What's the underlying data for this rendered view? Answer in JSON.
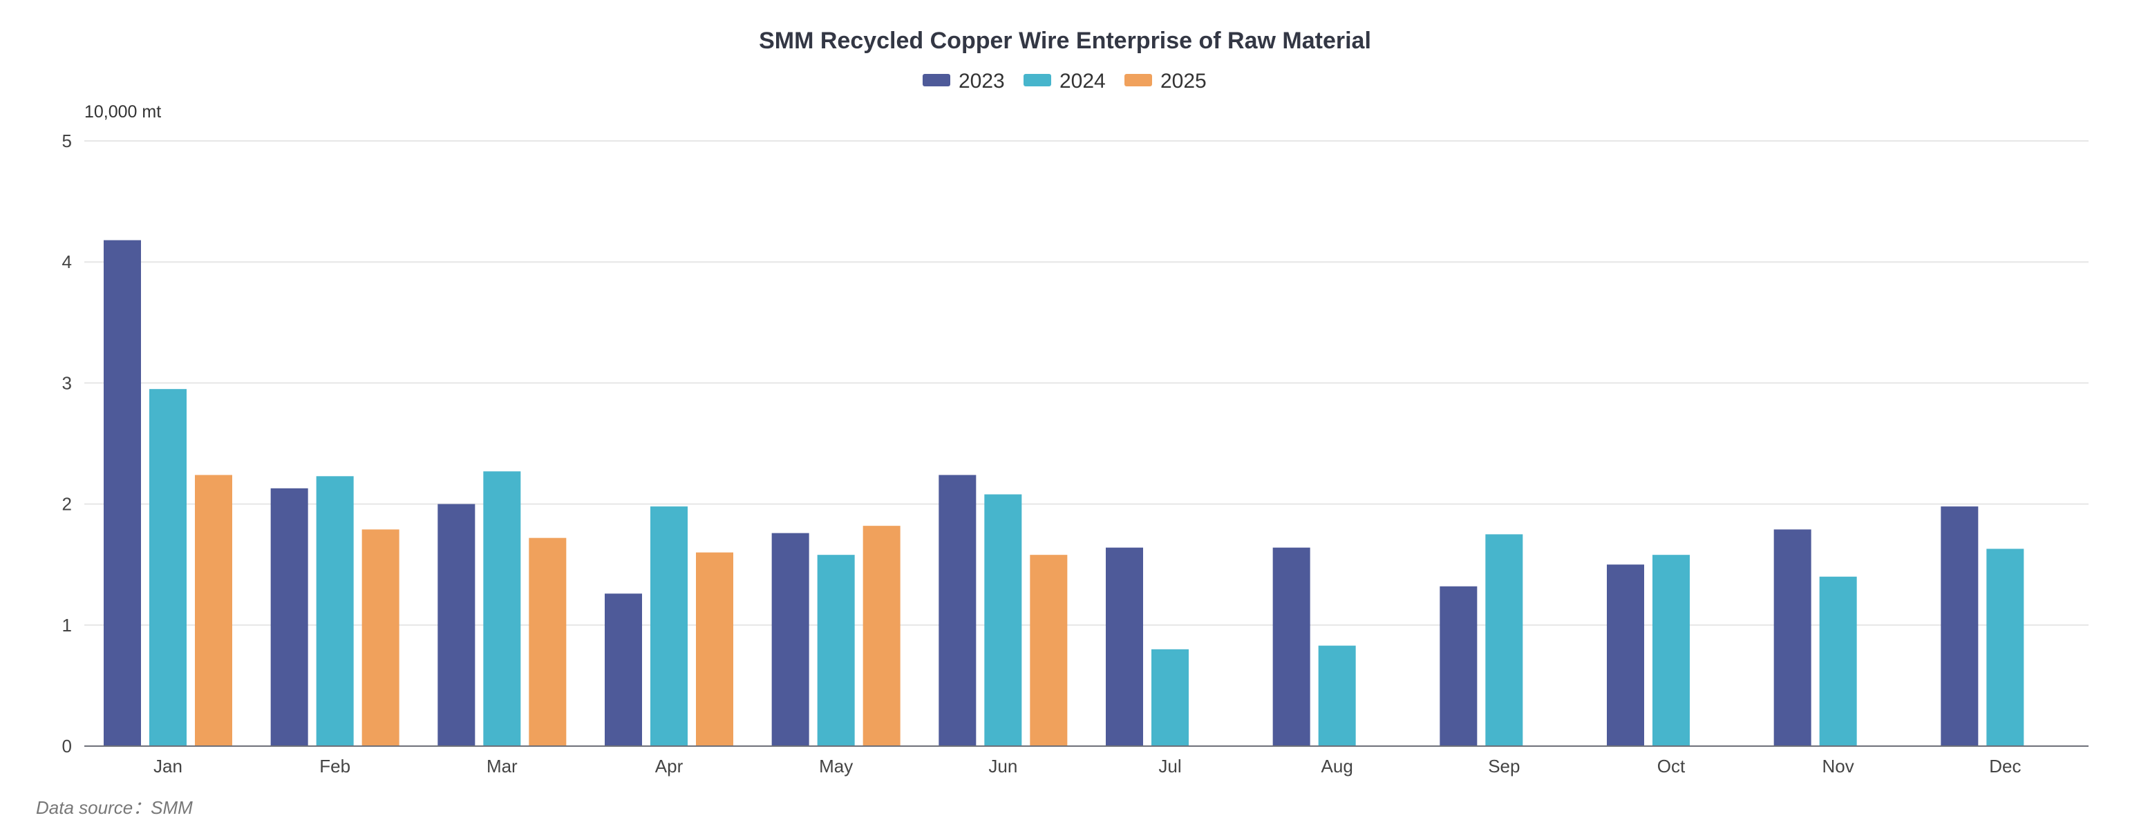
{
  "chart_data": {
    "type": "bar",
    "title": "SMM Recycled Copper Wire Enterprise of Raw Material",
    "y_unit": "10,000 mt",
    "xlabel": "",
    "ylabel": "",
    "ylim": [
      0,
      5
    ],
    "y_ticks": [
      "0",
      "1",
      "2",
      "3",
      "4",
      "5"
    ],
    "grid": true,
    "legend_position": "top-center",
    "categories": [
      "Jan",
      "Feb",
      "Mar",
      "Apr",
      "May",
      "Jun",
      "Jul",
      "Aug",
      "Sep",
      "Oct",
      "Nov",
      "Dec"
    ],
    "series": [
      {
        "name": "2023",
        "color": "#4e5a99",
        "values": [
          4.18,
          2.13,
          2.0,
          1.26,
          1.76,
          2.24,
          1.64,
          1.64,
          1.32,
          1.5,
          1.79,
          1.98
        ]
      },
      {
        "name": "2024",
        "color": "#47b5cc",
        "values": [
          2.95,
          2.23,
          2.27,
          1.98,
          1.58,
          2.08,
          0.8,
          0.83,
          1.75,
          1.58,
          1.4,
          1.63
        ]
      },
      {
        "name": "2025",
        "color": "#f0a15c",
        "values": [
          2.24,
          1.79,
          1.72,
          1.6,
          1.82,
          1.58,
          null,
          null,
          null,
          null,
          null,
          null
        ]
      }
    ],
    "source": "Data source：SMM"
  }
}
